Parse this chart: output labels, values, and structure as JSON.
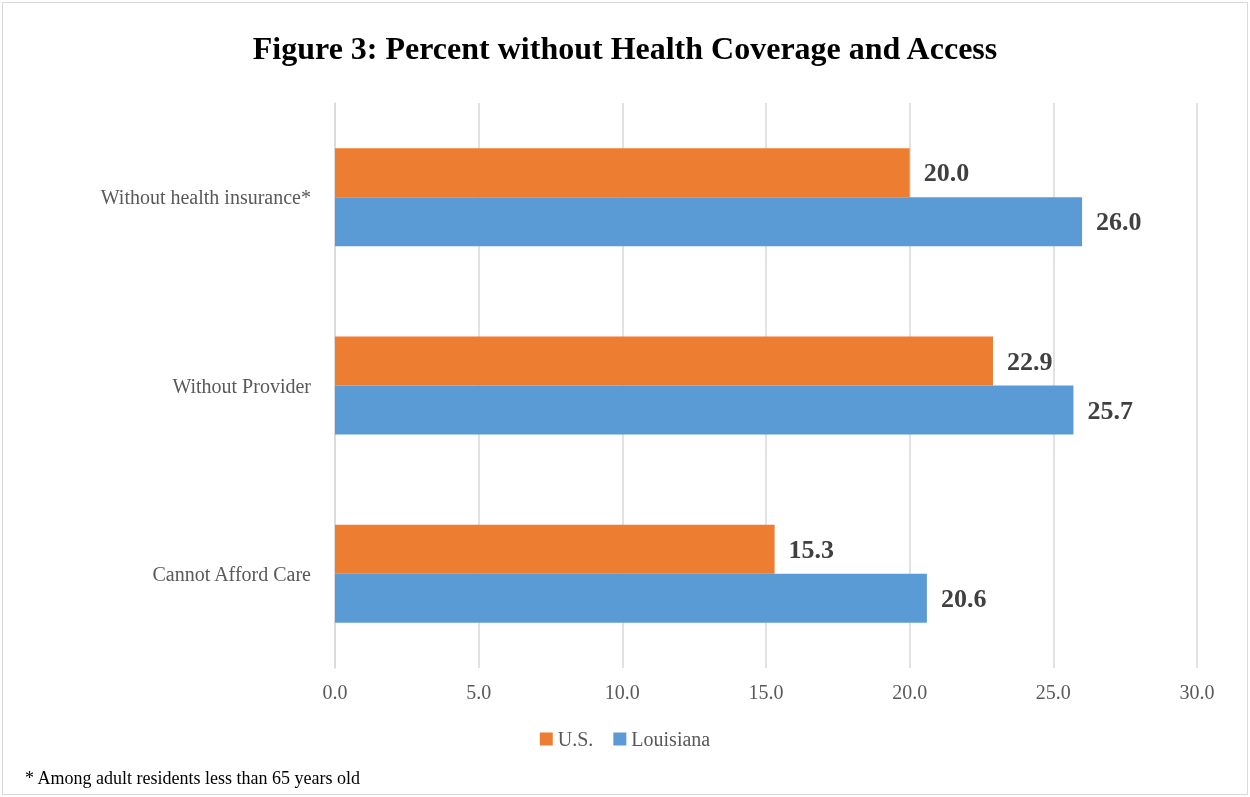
{
  "chart_data": {
    "type": "bar",
    "orientation": "horizontal",
    "title": "Figure 3: Percent without Health Coverage and Access",
    "categories": [
      "Without health insurance*",
      "Without Provider",
      "Cannot Afford Care"
    ],
    "series": [
      {
        "name": "U.S.",
        "color": "#ed7d31",
        "values": [
          20.0,
          22.9,
          15.3
        ],
        "value_labels": [
          "20.0",
          "22.9",
          "15.3"
        ]
      },
      {
        "name": "Louisiana",
        "color": "#5b9bd5",
        "values": [
          26.0,
          25.7,
          20.6
        ],
        "value_labels": [
          "26.0",
          "25.7",
          "20.6"
        ]
      }
    ],
    "xlim": [
      0,
      30
    ],
    "xticks": [
      {
        "value": 0,
        "label": "0.0"
      },
      {
        "value": 5,
        "label": "5.0"
      },
      {
        "value": 10,
        "label": "10.0"
      },
      {
        "value": 15,
        "label": "15.0"
      },
      {
        "value": 20,
        "label": "20.0"
      },
      {
        "value": 25,
        "label": "25.0"
      },
      {
        "value": 30,
        "label": "30.0"
      }
    ],
    "grid": "x",
    "legend": "bottom",
    "annotations": [
      "* Among adult residents less than 65 years old"
    ]
  }
}
